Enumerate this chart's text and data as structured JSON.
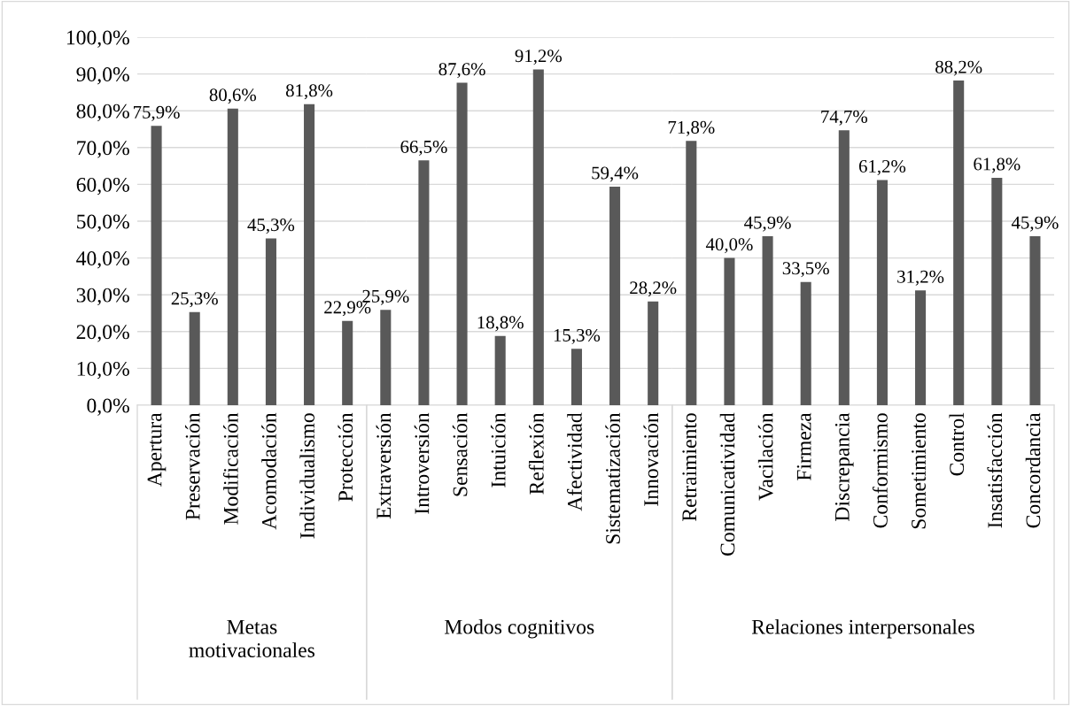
{
  "chart_data": [
    {
      "type": "bar",
      "color": "#595959",
      "xlabel": "Metas\nmotivacionales",
      "categories": [
        "Apertura",
        "Preservación",
        "Modificación",
        "Acomodación",
        "Individualismo",
        "Protección"
      ],
      "values": [
        75.9,
        25.3,
        80.6,
        45.3,
        81.8,
        22.9
      ],
      "value_labels": [
        "75,9%",
        "25,3%",
        "80,6%",
        "45,3%",
        "81,8%",
        "22,9%"
      ],
      "ylim": [
        0,
        100
      ],
      "yticks": [
        {
          "value": 0,
          "label": "0,0%"
        },
        {
          "value": 10,
          "label": "10,0%"
        },
        {
          "value": 20,
          "label": "20,0%"
        },
        {
          "value": 30,
          "label": "30,0%"
        },
        {
          "value": 40,
          "label": "40,0%"
        },
        {
          "value": 50,
          "label": "50,0%"
        },
        {
          "value": 60,
          "label": "60,0%"
        },
        {
          "value": 70,
          "label": "70,0%"
        },
        {
          "value": 80,
          "label": "80,0%"
        },
        {
          "value": 90,
          "label": "90,0%"
        },
        {
          "value": 100,
          "label": "100,0%"
        }
      ],
      "grid": "y"
    },
    {
      "type": "bar",
      "color": "#595959",
      "xlabel": "Modos cognitivos",
      "categories": [
        "Extraversión",
        "Introversión",
        "Sensación",
        "Intuición",
        "Reflexión",
        "Afectividad",
        "Sistematización",
        "Innovación"
      ],
      "values": [
        25.9,
        66.5,
        87.6,
        18.8,
        91.2,
        15.3,
        59.4,
        28.2
      ],
      "value_labels": [
        "25,9%",
        "66,5%",
        "87,6%",
        "18,8%",
        "91,2%",
        "15,3%",
        "59,4%",
        "28,2%"
      ],
      "ylim": [
        0,
        100
      ],
      "tick_labels": "x",
      "grid": "y"
    },
    {
      "type": "bar",
      "color": "#595959",
      "xlabel": "Relaciones interpersonales",
      "categories": [
        "Retraimiento",
        "Comunicatividad",
        "Vacilación",
        "Firmeza",
        "Discrepancia",
        "Conformismo",
        "Sometimiento",
        "Control",
        "Insatisfacción",
        "Concordancia"
      ],
      "values": [
        71.8,
        40.0,
        45.9,
        33.5,
        74.7,
        61.2,
        31.2,
        88.2,
        61.8,
        45.9
      ],
      "value_labels": [
        "71,8%",
        "40,0%",
        "45,9%",
        "33,5%",
        "74,7%",
        "61,2%",
        "31,2%",
        "88,2%",
        "61,8%",
        "45,9%"
      ],
      "ylim": [
        0,
        100
      ],
      "tick_labels": "x",
      "grid": "y"
    }
  ]
}
